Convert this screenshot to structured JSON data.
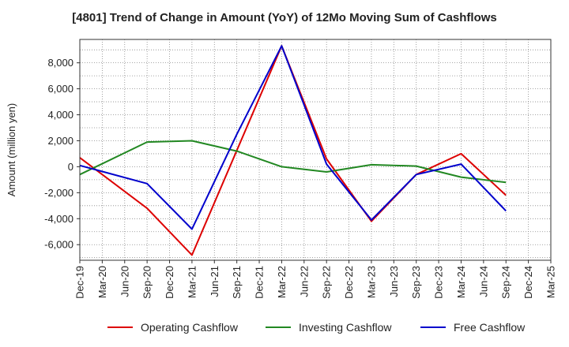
{
  "chart_data": {
    "type": "line",
    "title": "[4801]  Trend of Change in Amount (YoY) of 12Mo Moving Sum of Cashflows",
    "xlabel": "",
    "ylabel": "Amount (million yen)",
    "ylim": [
      -7200,
      9800
    ],
    "yticks": [
      8000,
      6000,
      4000,
      2000,
      0,
      -2000,
      -4000,
      -6000
    ],
    "ytick_labels": [
      "8,000",
      "6,000",
      "4,000",
      "2,000",
      "0",
      "-2,000",
      "-4,000",
      "-6,000"
    ],
    "categories": [
      "Dec-19",
      "Mar-20",
      "Jun-20",
      "Sep-20",
      "Dec-20",
      "Mar-21",
      "Jun-21",
      "Sep-21",
      "Dec-21",
      "Mar-22",
      "Jun-22",
      "Sep-22",
      "Dec-22",
      "Mar-23",
      "Jun-23",
      "Sep-23",
      "Dec-23",
      "Mar-24",
      "Jun-24",
      "Sep-24",
      "Dec-24",
      "Mar-25"
    ],
    "grid": true,
    "legend_position": "bottom",
    "series": [
      {
        "name": "Operating Cashflow",
        "color": "#dd0000",
        "values": [
          700,
          null,
          null,
          -3200,
          null,
          -6800,
          null,
          null,
          null,
          9300,
          null,
          600,
          null,
          -4200,
          null,
          -600,
          null,
          1000,
          null,
          -2200,
          null,
          null
        ]
      },
      {
        "name": "Investing Cashflow",
        "color": "#228822",
        "values": [
          -600,
          null,
          null,
          1900,
          null,
          2000,
          null,
          1200,
          null,
          0,
          null,
          -400,
          null,
          150,
          null,
          50,
          null,
          -800,
          null,
          -1200,
          null,
          null
        ]
      },
      {
        "name": "Free Cashflow",
        "color": "#0000cc",
        "values": [
          100,
          null,
          null,
          -1300,
          null,
          -4800,
          null,
          2500,
          null,
          9300,
          null,
          200,
          null,
          -4100,
          null,
          -600,
          null,
          200,
          null,
          -3400,
          null,
          null
        ]
      }
    ]
  }
}
